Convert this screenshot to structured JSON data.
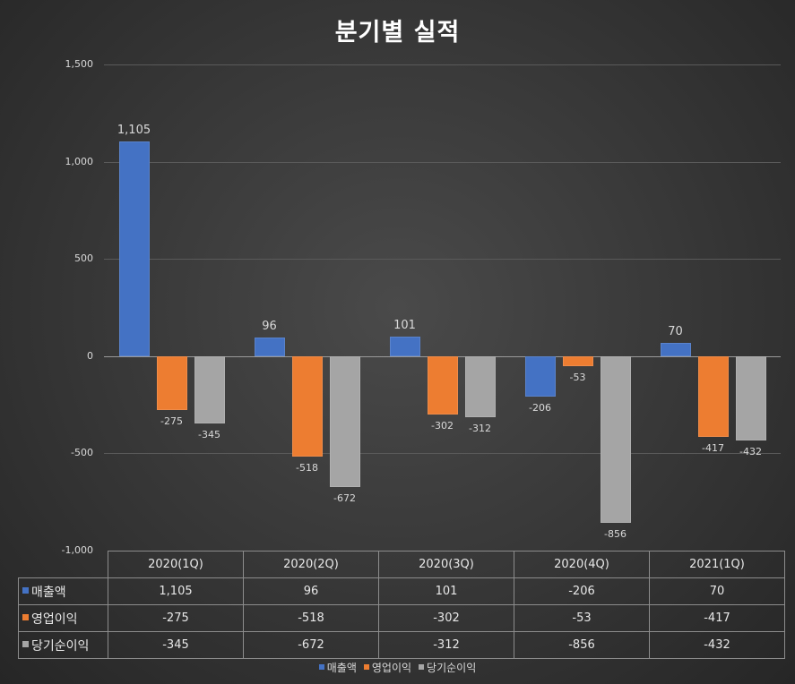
{
  "chart_data": {
    "type": "bar",
    "title": "분기별 실적",
    "categories": [
      "2020(1Q)",
      "2020(2Q)",
      "2020(3Q)",
      "2020(4Q)",
      "2021(1Q)"
    ],
    "series": [
      {
        "name": "매출액",
        "color": "#4472c4",
        "values": [
          1105,
          96,
          101,
          -206,
          70
        ],
        "labels": [
          "1,105",
          "96",
          "101",
          "-206",
          "70"
        ]
      },
      {
        "name": "영업이익",
        "color": "#ed7d31",
        "values": [
          -275,
          -518,
          -302,
          -53,
          -417
        ],
        "labels": [
          "-275",
          "-518",
          "-302",
          "-53",
          "-417"
        ]
      },
      {
        "name": "당기순이익",
        "color": "#a5a5a5",
        "values": [
          -345,
          -672,
          -312,
          -856,
          -432
        ],
        "labels": [
          "-345",
          "-672",
          "-312",
          "-856",
          "-432"
        ]
      }
    ],
    "ylim": [
      -1000,
      1500
    ],
    "yticks": [
      1500,
      1000,
      500,
      0,
      -500,
      -1000
    ],
    "ytick_labels": [
      "1,500",
      "1,000",
      "500",
      "0",
      "-500",
      "-1,000"
    ],
    "grid": true,
    "legend": "bottom",
    "data_table": true
  }
}
